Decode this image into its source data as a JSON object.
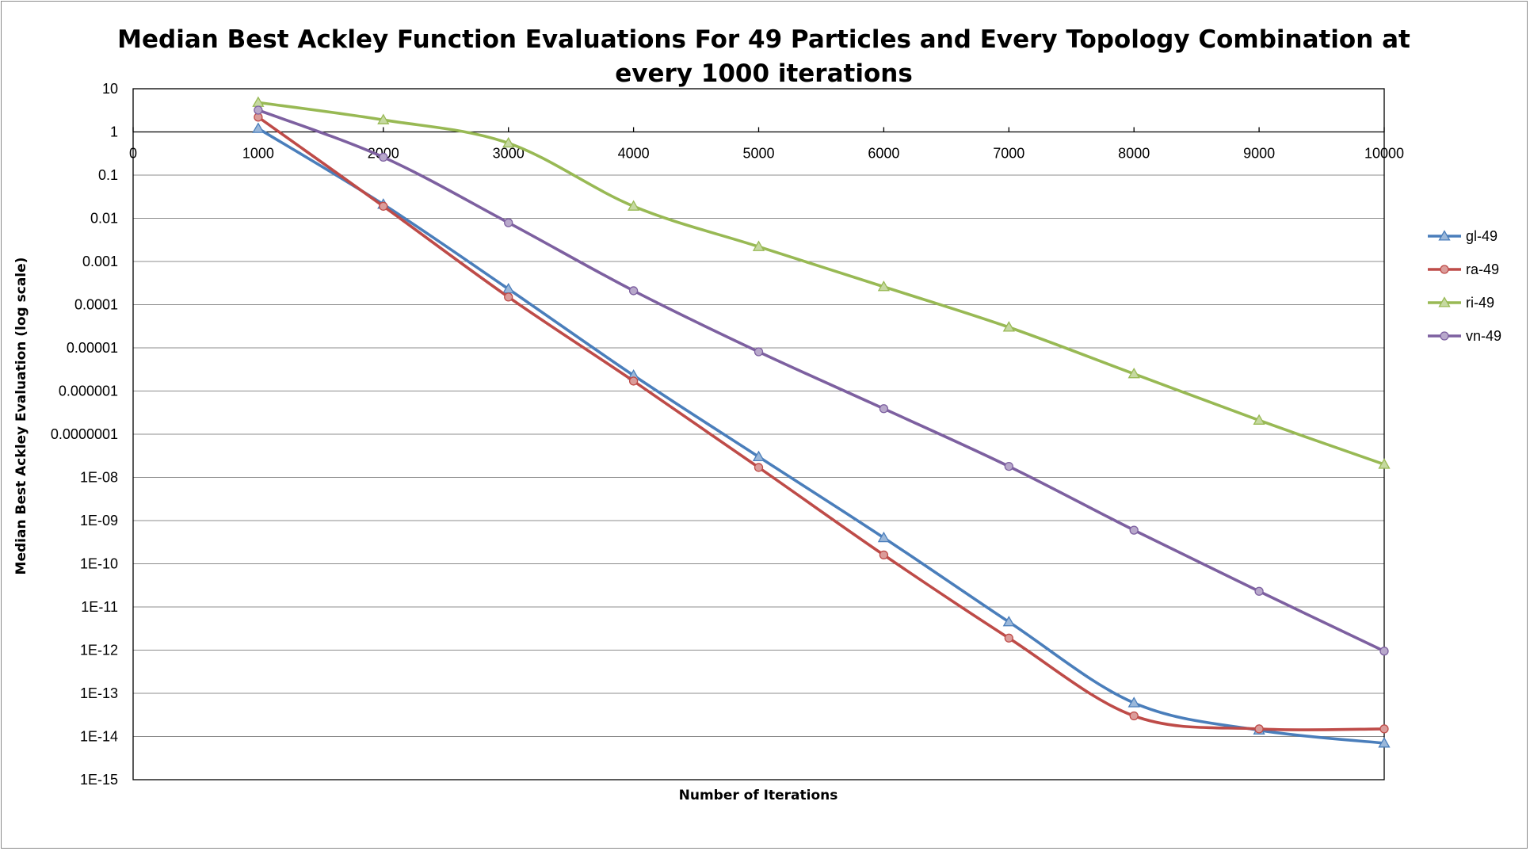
{
  "chart_data": {
    "type": "line",
    "title_lines": [
      "Median Best Ackley Function Evaluations For 49 Particles and Every Topology Combination at",
      "every 1000 iterations"
    ],
    "xlabel": "Number of Iterations",
    "ylabel": "Median Best Ackley Evaluation (log scale)",
    "y_scale": "log",
    "xlim": [
      0,
      10000
    ],
    "ylim": [
      1e-15,
      10
    ],
    "x_tick_labels": [
      "0",
      "1000",
      "2000",
      "3000",
      "4000",
      "5000",
      "6000",
      "7000",
      "8000",
      "9000",
      "10000"
    ],
    "y_tick_labels": [
      "10",
      "1",
      "0.1",
      "0.01",
      "0.001",
      "0.0001",
      "0.00001",
      "0.000001",
      "0.0000001",
      "1E-08",
      "1E-09",
      "1E-10",
      "1E-11",
      "1E-12",
      "1E-13",
      "1E-14",
      "1E-15"
    ],
    "grid": true,
    "legend_position": "right",
    "x": [
      1000,
      2000,
      3000,
      4000,
      5000,
      6000,
      7000,
      8000,
      9000,
      10000
    ],
    "series": [
      {
        "name": "gl-49",
        "color": "#4a7ebb",
        "marker": "triangle",
        "values": [
          1.2,
          0.021,
          0.00023,
          2.3e-06,
          3e-08,
          4e-10,
          4.5e-12,
          6e-14,
          1.4e-14,
          7e-15
        ]
      },
      {
        "name": "ra-49",
        "color": "#be4b48",
        "marker": "circle",
        "values": [
          2.2,
          0.019,
          0.00015,
          1.7e-06,
          1.7e-08,
          1.6e-10,
          1.9e-12,
          3e-14,
          1.5e-14,
          1.5e-14
        ]
      },
      {
        "name": "ri-49",
        "color": "#98b954",
        "marker": "triangle",
        "values": [
          4.8,
          1.9,
          0.55,
          0.019,
          0.0022,
          0.00026,
          3e-05,
          2.5e-06,
          2.1e-07,
          2e-08
        ]
      },
      {
        "name": "vn-49",
        "color": "#7d60a0",
        "marker": "circle",
        "values": [
          3.2,
          0.26,
          0.0079,
          0.00021,
          8.1e-06,
          3.9e-07,
          1.8e-08,
          6e-10,
          2.3e-11,
          9.5e-13
        ]
      }
    ]
  }
}
